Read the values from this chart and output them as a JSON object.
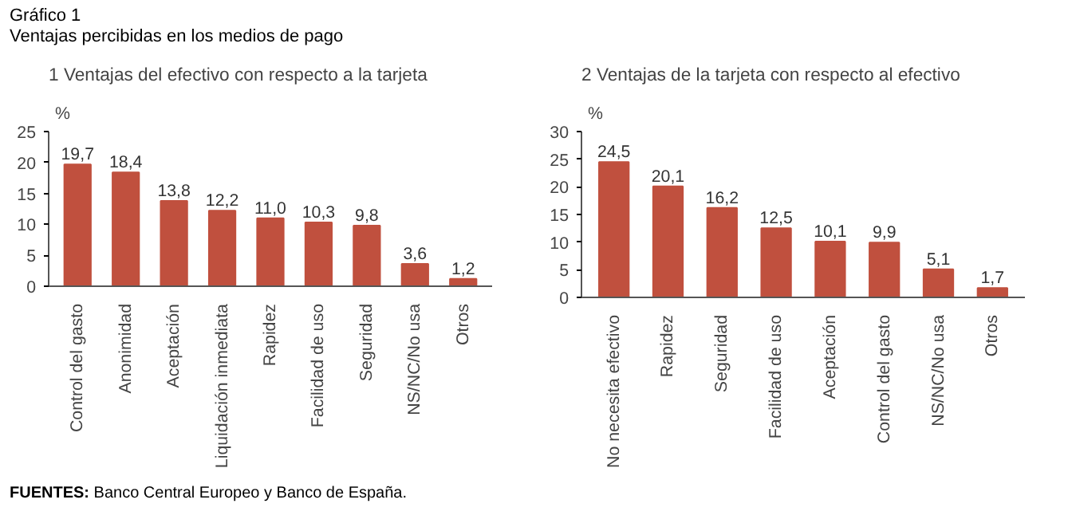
{
  "chart_data": [
    {
      "type": "bar",
      "title": "1  Ventajas del efectivo con respecto a la tarjeta",
      "ylabel": "%",
      "annotations": [
        "Gráfico 1",
        "Ventajas percibidas en los medios de pago"
      ],
      "categories": [
        "Control del gasto",
        "Anonimidad",
        "Aceptación",
        "Liquidación inmediata",
        "Rapidez",
        "Facilidad de uso",
        "Seguridad",
        "NS/NC/No usa",
        "Otros"
      ],
      "values": [
        19.7,
        18.4,
        13.8,
        12.2,
        11.0,
        10.3,
        9.8,
        3.6,
        1.2
      ],
      "value_labels": [
        "19,7",
        "18,4",
        "13,8",
        "12,2",
        "11,0",
        "10,3",
        "9,8",
        "3,6",
        "1,2"
      ],
      "color": "#c0503e",
      "ylim": [
        0,
        25
      ],
      "yticks": [
        0,
        5,
        10,
        15,
        20,
        25
      ]
    },
    {
      "type": "bar",
      "title": "2  Ventajas de la tarjeta con respecto al efectivo",
      "ylabel": "%",
      "annotations": [
        "FUENTES: Banco Central Europeo y Banco de España."
      ],
      "categories": [
        "No necesita efectivo",
        "Rapidez",
        "Seguridad",
        "Facilidad de uso",
        "Aceptación",
        "Control del gasto",
        "NS/NC/No usa",
        "Otros"
      ],
      "values": [
        24.5,
        20.1,
        16.2,
        12.5,
        10.1,
        9.9,
        5.1,
        1.7
      ],
      "value_labels": [
        "24,5",
        "20,1",
        "16,2",
        "12,5",
        "10,1",
        "9,9",
        "5,1",
        "1,7"
      ],
      "color": "#c0503e",
      "ylim": [
        0,
        30
      ],
      "yticks": [
        0,
        5,
        10,
        15,
        20,
        25,
        30
      ]
    }
  ]
}
